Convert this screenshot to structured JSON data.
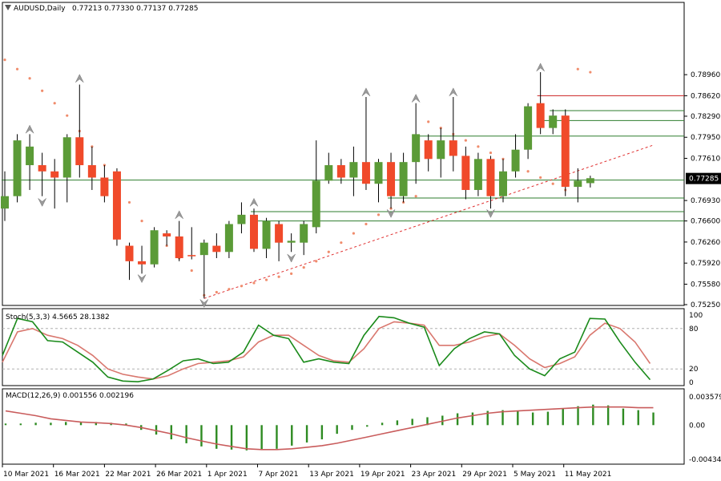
{
  "header": {
    "symbol_line": "AUDUSD,Daily",
    "ohlc_line": "0.77213 0.77330 0.77137 0.77285"
  },
  "colors": {
    "bull": "#5b9b37",
    "bear": "#f04a2a",
    "wick": "#000000",
    "stoch_main": "#1a8a1a",
    "stoch_signal": "#d9776e",
    "macd_hist": "#2e8b22",
    "macd_signal": "#c95c5c",
    "sar": "#f08c6c",
    "trendline": "#e03030",
    "level_green": "#2e7d2e",
    "level_red": "#cc2222",
    "grid_dash": "#b0b0b0",
    "price_tag_bg": "#000000",
    "price_tag_fg": "#ffffff"
  },
  "chart_data": [
    {
      "type": "candlestick",
      "title": "AUDUSD,Daily",
      "subtitle": "0.77213 0.77330 0.77137 0.77285",
      "current_price_label": "0.77285",
      "current_price": 0.77285,
      "ylim": [
        0.7525,
        0.801
      ],
      "y_ticks": [
        "0.78960",
        "0.78620",
        "0.78290",
        "0.77950",
        "0.77610",
        "0.77285",
        "0.76930",
        "0.76600",
        "0.76260",
        "0.75920",
        "0.75580",
        "0.75250"
      ],
      "x_ticks": [
        "10 Mar 2021",
        "16 Mar 2021",
        "22 Mar 2021",
        "26 Mar 2021",
        "1 Apr 2021",
        "7 Apr 2021",
        "13 Apr 2021",
        "19 Apr 2021",
        "23 Apr 2021",
        "29 Apr 2021",
        "5 May 2021",
        "11 May 2021"
      ],
      "candles": [
        {
          "o": 0.768,
          "h": 0.774,
          "l": 0.766,
          "c": 0.77
        },
        {
          "o": 0.77,
          "h": 0.78,
          "l": 0.769,
          "c": 0.779
        },
        {
          "o": 0.775,
          "h": 0.78,
          "l": 0.771,
          "c": 0.778
        },
        {
          "o": 0.775,
          "h": 0.777,
          "l": 0.77,
          "c": 0.774
        },
        {
          "o": 0.774,
          "h": 0.776,
          "l": 0.768,
          "c": 0.773
        },
        {
          "o": 0.773,
          "h": 0.78,
          "l": 0.769,
          "c": 0.7795
        },
        {
          "o": 0.7795,
          "h": 0.788,
          "l": 0.773,
          "c": 0.775
        },
        {
          "o": 0.775,
          "h": 0.778,
          "l": 0.771,
          "c": 0.773
        },
        {
          "o": 0.773,
          "h": 0.775,
          "l": 0.769,
          "c": 0.77
        },
        {
          "o": 0.774,
          "h": 0.7745,
          "l": 0.762,
          "c": 0.763
        },
        {
          "o": 0.762,
          "h": 0.7625,
          "l": 0.7565,
          "c": 0.7595
        },
        {
          "o": 0.7595,
          "h": 0.762,
          "l": 0.7575,
          "c": 0.759
        },
        {
          "o": 0.759,
          "h": 0.765,
          "l": 0.7585,
          "c": 0.7645
        },
        {
          "o": 0.764,
          "h": 0.7645,
          "l": 0.762,
          "c": 0.7635
        },
        {
          "o": 0.7635,
          "h": 0.766,
          "l": 0.7595,
          "c": 0.76
        },
        {
          "o": 0.7605,
          "h": 0.765,
          "l": 0.7598,
          "c": 0.7603
        },
        {
          "o": 0.7605,
          "h": 0.763,
          "l": 0.7535,
          "c": 0.7625
        },
        {
          "o": 0.762,
          "h": 0.764,
          "l": 0.76,
          "c": 0.761
        },
        {
          "o": 0.761,
          "h": 0.766,
          "l": 0.76,
          "c": 0.7655
        },
        {
          "o": 0.7655,
          "h": 0.769,
          "l": 0.764,
          "c": 0.767
        },
        {
          "o": 0.767,
          "h": 0.768,
          "l": 0.761,
          "c": 0.7615
        },
        {
          "o": 0.7615,
          "h": 0.7665,
          "l": 0.76,
          "c": 0.766
        },
        {
          "o": 0.7655,
          "h": 0.766,
          "l": 0.7595,
          "c": 0.7625
        },
        {
          "o": 0.7625,
          "h": 0.764,
          "l": 0.761,
          "c": 0.7628
        },
        {
          "o": 0.7625,
          "h": 0.766,
          "l": 0.7605,
          "c": 0.7655
        },
        {
          "o": 0.765,
          "h": 0.779,
          "l": 0.764,
          "c": 0.7725
        },
        {
          "o": 0.7725,
          "h": 0.777,
          "l": 0.772,
          "c": 0.775
        },
        {
          "o": 0.775,
          "h": 0.776,
          "l": 0.772,
          "c": 0.773
        },
        {
          "o": 0.773,
          "h": 0.778,
          "l": 0.77,
          "c": 0.7755
        },
        {
          "o": 0.7755,
          "h": 0.786,
          "l": 0.771,
          "c": 0.772
        },
        {
          "o": 0.772,
          "h": 0.776,
          "l": 0.769,
          "c": 0.7755
        },
        {
          "o": 0.7755,
          "h": 0.777,
          "l": 0.768,
          "c": 0.77
        },
        {
          "o": 0.77,
          "h": 0.777,
          "l": 0.769,
          "c": 0.7755
        },
        {
          "o": 0.7755,
          "h": 0.785,
          "l": 0.772,
          "c": 0.78
        },
        {
          "o": 0.779,
          "h": 0.78,
          "l": 0.774,
          "c": 0.776
        },
        {
          "o": 0.776,
          "h": 0.781,
          "l": 0.773,
          "c": 0.779
        },
        {
          "o": 0.779,
          "h": 0.786,
          "l": 0.774,
          "c": 0.7765
        },
        {
          "o": 0.7765,
          "h": 0.778,
          "l": 0.7695,
          "c": 0.771
        },
        {
          "o": 0.771,
          "h": 0.777,
          "l": 0.77,
          "c": 0.776
        },
        {
          "o": 0.776,
          "h": 0.7765,
          "l": 0.768,
          "c": 0.77
        },
        {
          "o": 0.77,
          "h": 0.776,
          "l": 0.769,
          "c": 0.774
        },
        {
          "o": 0.774,
          "h": 0.78,
          "l": 0.773,
          "c": 0.7775
        },
        {
          "o": 0.7775,
          "h": 0.785,
          "l": 0.776,
          "c": 0.7845
        },
        {
          "o": 0.785,
          "h": 0.79,
          "l": 0.78,
          "c": 0.781
        },
        {
          "o": 0.781,
          "h": 0.784,
          "l": 0.78,
          "c": 0.783
        },
        {
          "o": 0.783,
          "h": 0.784,
          "l": 0.77,
          "c": 0.7715
        },
        {
          "o": 0.7715,
          "h": 0.7745,
          "l": 0.769,
          "c": 0.7725
        },
        {
          "o": 0.7721,
          "h": 0.7733,
          "l": 0.7714,
          "c": 0.7729
        }
      ],
      "sar": [
        0.792,
        0.7905,
        0.789,
        0.787,
        0.785,
        0.783,
        0.7805,
        0.778,
        0.775,
        0.772,
        0.769,
        0.766,
        0.764,
        0.762,
        0.76,
        0.758,
        0.754,
        0.7545,
        0.755,
        0.7555,
        0.756,
        0.7565,
        0.757,
        0.7575,
        0.7585,
        0.7595,
        0.761,
        0.7625,
        0.764,
        0.7655,
        0.767,
        0.768,
        0.769,
        0.77,
        0.782,
        0.781,
        0.78,
        0.779,
        0.778,
        0.777,
        0.776,
        0.775,
        0.774,
        0.773,
        0.772,
        0.771,
        0.7905,
        0.79
      ],
      "fractals_up": [
        {
          "i": 2,
          "v": 0.7808
        },
        {
          "i": 6,
          "v": 0.789
        },
        {
          "i": 14,
          "v": 0.767
        },
        {
          "i": 20,
          "v": 0.769
        },
        {
          "i": 29,
          "v": 0.7868
        },
        {
          "i": 33,
          "v": 0.7858
        },
        {
          "i": 36,
          "v": 0.7868
        },
        {
          "i": 43,
          "v": 0.7908
        }
      ],
      "fractals_down": [
        {
          "i": 3,
          "v": 0.769
        },
        {
          "i": 11,
          "v": 0.7567
        },
        {
          "i": 16,
          "v": 0.7527
        },
        {
          "i": 23,
          "v": 0.76
        },
        {
          "i": 31,
          "v": 0.7672
        },
        {
          "i": 39,
          "v": 0.7672
        }
      ],
      "levels": [
        {
          "v": 0.7862,
          "from": 43,
          "color": "level_red"
        },
        {
          "v": 0.7838,
          "from": 44,
          "color": "level_green"
        },
        {
          "v": 0.7822,
          "from": 43,
          "color": "level_green"
        },
        {
          "v": 0.7797,
          "from": 33,
          "color": "level_green"
        },
        {
          "v": 0.7726,
          "from": 0,
          "color": "level_green"
        },
        {
          "v": 0.7697,
          "from": 31,
          "color": "level_green"
        },
        {
          "v": 0.7675,
          "from": 20,
          "color": "level_green"
        },
        {
          "v": 0.766,
          "from": 20,
          "color": "level_green"
        }
      ],
      "trendline": {
        "i0": 16,
        "v0": 0.7535,
        "i1": 52,
        "v1": 0.7782
      }
    },
    {
      "type": "line",
      "title": "Stoch(5,3,3) 4.5665 28.1382",
      "ylim": [
        0,
        100
      ],
      "y_ticks": [
        "100",
        "80",
        "20",
        "0"
      ],
      "levels": [
        80,
        20
      ],
      "series": [
        {
          "name": "main",
          "color": "stoch_main",
          "values": [
            40,
            95,
            90,
            62,
            60,
            45,
            30,
            8,
            2,
            1,
            5,
            18,
            32,
            35,
            28,
            30,
            45,
            85,
            70,
            65,
            30,
            35,
            30,
            28,
            70,
            98,
            96,
            88,
            82,
            25,
            50,
            65,
            75,
            72,
            40,
            20,
            10,
            35,
            45,
            95,
            94,
            60,
            30,
            4
          ]
        },
        {
          "name": "signal",
          "color": "stoch_signal",
          "values": [
            30,
            75,
            80,
            70,
            65,
            55,
            40,
            20,
            12,
            8,
            5,
            10,
            20,
            28,
            30,
            32,
            38,
            60,
            70,
            70,
            55,
            40,
            32,
            30,
            50,
            80,
            90,
            88,
            85,
            55,
            55,
            60,
            68,
            72,
            55,
            35,
            22,
            28,
            38,
            70,
            88,
            80,
            60,
            28
          ]
        }
      ]
    },
    {
      "type": "bar",
      "title": "MACD(12,26,9) 0.001556 0.002196",
      "ylim": [
        -0.00444,
        0.00379
      ],
      "y_ticks": [
        "0.003579",
        "0.00",
        "-0.004344"
      ],
      "series": [
        {
          "name": "histogram",
          "color": "macd_hist",
          "values": [
            0.0002,
            0.0002,
            0.0003,
            0.0003,
            0.0004,
            0.0004,
            0.0004,
            0.0003,
            0.0002,
            -0.0006,
            -0.0012,
            -0.0018,
            -0.0023,
            -0.0027,
            -0.003,
            -0.0031,
            -0.0032,
            -0.0031,
            -0.003,
            -0.0026,
            -0.0022,
            -0.0018,
            -0.0011,
            -0.0006,
            -0.0002,
            0.0003,
            0.0006,
            0.0008,
            0.001,
            0.0012,
            0.0015,
            0.0016,
            0.0018,
            0.0019,
            0.0018,
            0.0016,
            0.0017,
            0.0021,
            0.0024,
            0.0026,
            0.0025,
            0.0021,
            0.0019,
            0.0016
          ]
        },
        {
          "name": "signal",
          "color": "macd_signal",
          "values": [
            0.0018,
            0.0015,
            0.0012,
            0.0008,
            0.0006,
            0.0004,
            0.0003,
            0.0002,
            0.0,
            -0.0003,
            -0.0007,
            -0.0011,
            -0.0016,
            -0.002,
            -0.0024,
            -0.0027,
            -0.003,
            -0.0031,
            -0.0031,
            -0.003,
            -0.0028,
            -0.0026,
            -0.0023,
            -0.0019,
            -0.0015,
            -0.0011,
            -0.0007,
            -0.0003,
            0.0001,
            0.0005,
            0.0009,
            0.0012,
            0.0015,
            0.0017,
            0.0018,
            0.0019,
            0.002,
            0.0021,
            0.0022,
            0.0023,
            0.0023,
            0.0023,
            0.0022,
            0.0022
          ]
        }
      ]
    }
  ]
}
